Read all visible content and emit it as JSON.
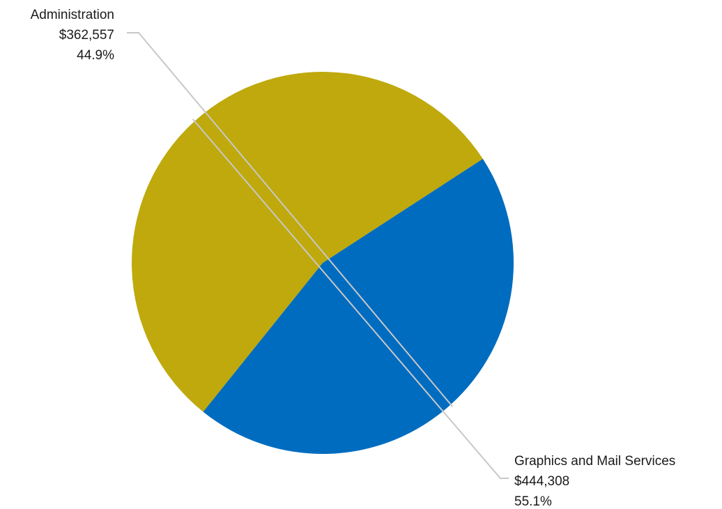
{
  "chart_data": {
    "type": "pie",
    "title": "",
    "slices": [
      {
        "name": "Administration",
        "value": 362557,
        "value_label": "$362,557",
        "percent": 44.9,
        "percent_label": "44.9%",
        "color": "#006cbf"
      },
      {
        "name": "Graphics and Mail Services",
        "value": 444308,
        "value_label": "$444,308",
        "percent": 55.1,
        "percent_label": "55.1%",
        "color": "#bfa90c"
      }
    ],
    "legend": "none",
    "label_placement": "outside with leader lines"
  }
}
